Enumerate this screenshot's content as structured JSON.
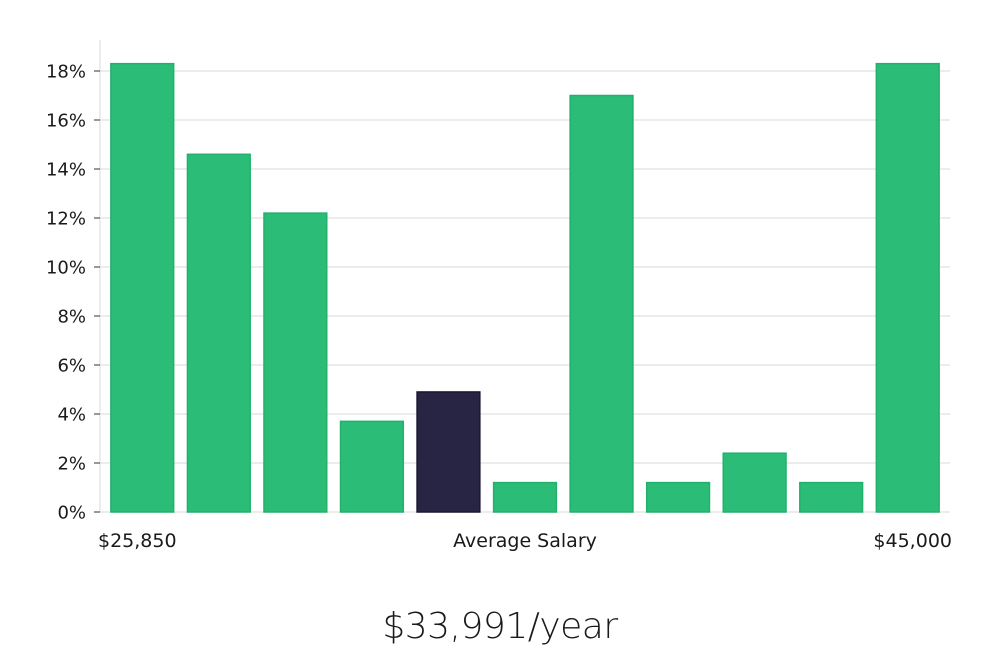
{
  "chart_data": {
    "type": "bar",
    "categories": [
      "1",
      "2",
      "3",
      "4",
      "5",
      "6",
      "7",
      "8",
      "9",
      "10",
      "11"
    ],
    "values": [
      18.3,
      14.6,
      12.2,
      3.7,
      4.9,
      1.2,
      17.0,
      1.2,
      2.4,
      1.2,
      18.3
    ],
    "highlight_index": 4,
    "colors": {
      "bar": "#2bbd77",
      "highlight": "#282444",
      "grid": "#e5e5e5",
      "axis": "#d8d8d8"
    },
    "ylim": [
      0,
      19
    ],
    "yticks": [
      0,
      2,
      4,
      6,
      8,
      10,
      12,
      14,
      16,
      18
    ],
    "ytick_labels": [
      "0%",
      "2%",
      "4%",
      "6%",
      "8%",
      "10%",
      "12%",
      "14%",
      "16%",
      "18%"
    ],
    "x_labels": {
      "left": "$25,850",
      "center": "Average Salary",
      "right": "$45,000"
    },
    "grid": true
  },
  "summary": {
    "salary": "$33,991/year"
  }
}
